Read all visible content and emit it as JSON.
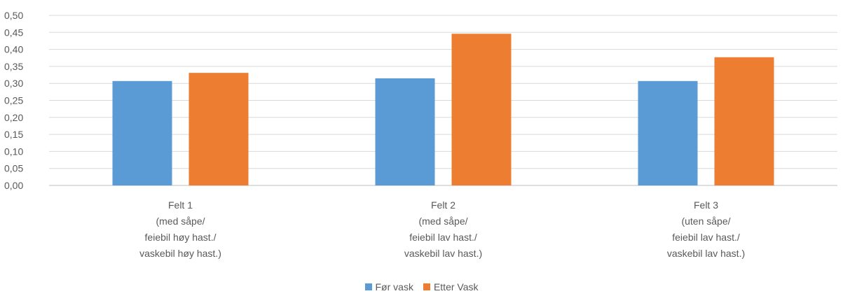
{
  "chart_data": {
    "type": "bar",
    "categories": [
      [
        "Felt 1",
        "(med såpe/",
        "feiebil høy hast./",
        "vaskebil høy hast.)"
      ],
      [
        "Felt 2",
        "(med såpe/",
        "feiebil lav hast./",
        "vaskebil lav hast.)"
      ],
      [
        "Felt 3",
        "(uten såpe/",
        "feiebil lav hast./",
        "vaskebil lav hast.)"
      ]
    ],
    "series": [
      {
        "name": "Før vask",
        "color": "#5b9bd5",
        "values": [
          0.307,
          0.315,
          0.307
        ]
      },
      {
        "name": "Etter Vask",
        "color": "#ed7d31",
        "values": [
          0.331,
          0.446,
          0.377
        ]
      }
    ],
    "ylim": [
      0,
      0.5
    ],
    "yticks": [
      "0,00",
      "0,05",
      "0,10",
      "0,15",
      "0,20",
      "0,25",
      "0,30",
      "0,35",
      "0,40",
      "0,45",
      "0,50"
    ],
    "grid": true,
    "legend_position": "bottom"
  }
}
